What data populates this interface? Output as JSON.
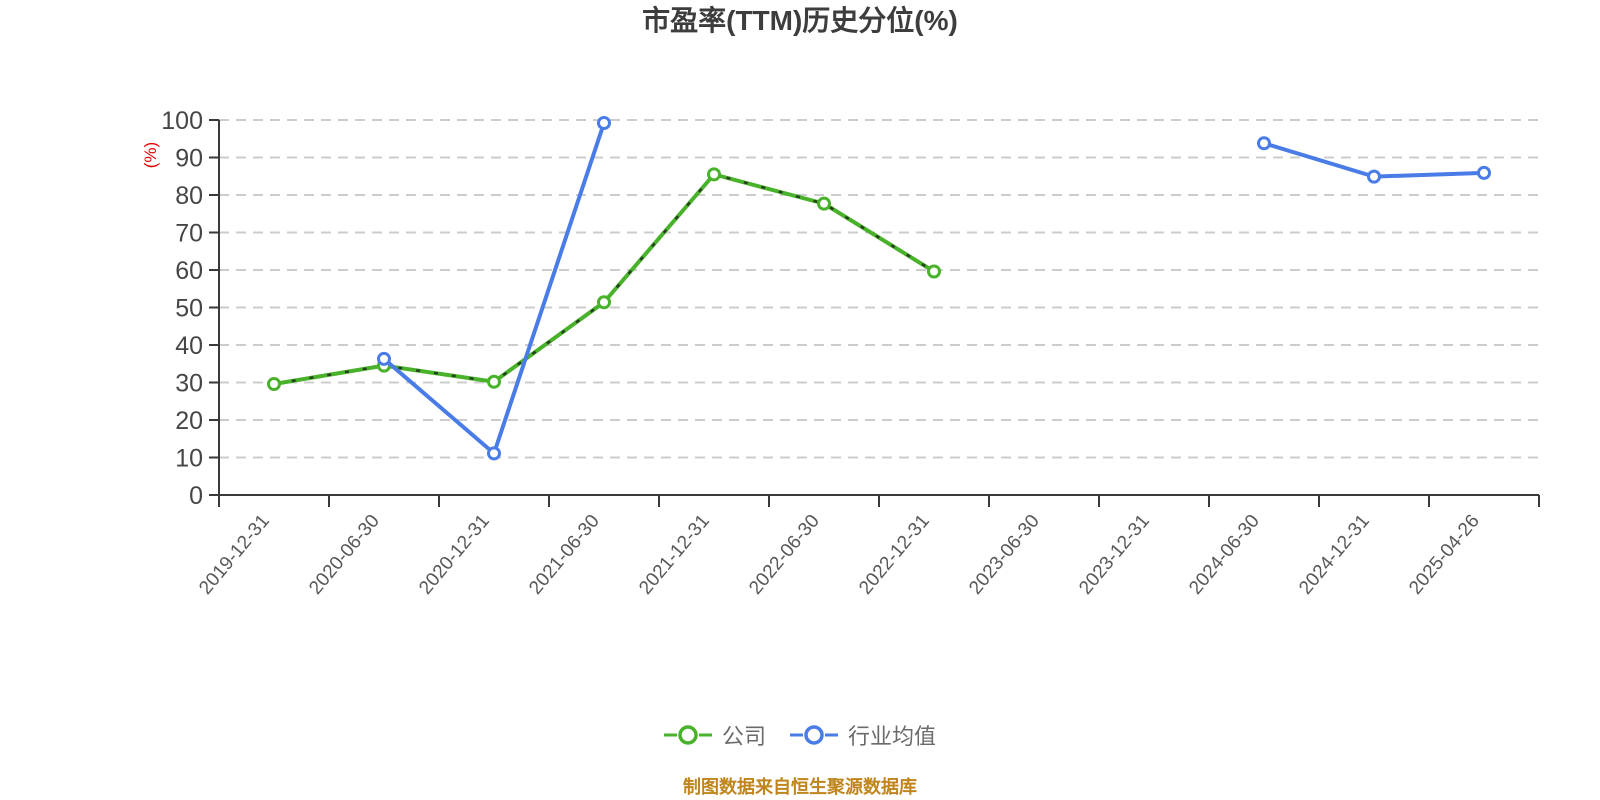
{
  "title": "市盈率(TTM)历史分位(%)",
  "footer": "制图数据来自恒生聚源数据库",
  "y_axis_unit": "(%)",
  "legend": [
    {
      "label": "公司",
      "color": "#49b22b"
    },
    {
      "label": "行业均值",
      "color": "#4a7ce8"
    }
  ],
  "colors": {
    "title": "#3d3d3d",
    "axis": "#3a3a3a",
    "tick": "#3a3a3a",
    "y_label": "#464646",
    "x_label": "#58585a",
    "gridline": "#cccccc",
    "unit_label": "#e60000",
    "legend_text": "#6b6b6b",
    "footer_text": "#c0851c",
    "company_line": "#49b22b",
    "industry_line": "#4a7ce8",
    "marker_fill": "#ffffff",
    "dash_overlay": "#1a1a1a"
  },
  "chart_data": {
    "type": "line",
    "title": "市盈率(TTM)历史分位(%)",
    "ylabel": "(%)",
    "xlabel": "",
    "ylim": [
      0,
      100
    ],
    "yticks": [
      0,
      10,
      20,
      30,
      40,
      50,
      60,
      70,
      80,
      90,
      100
    ],
    "grid": "horizontal-dashed",
    "legend_position": "bottom-center",
    "categories": [
      "2019-12-31",
      "2020-06-30",
      "2020-12-31",
      "2021-06-30",
      "2021-12-31",
      "2022-06-30",
      "2022-12-31",
      "2023-06-30",
      "2023-12-31",
      "2024-06-30",
      "2024-12-31",
      "2025-04-26"
    ],
    "series": [
      {
        "id": "company",
        "name": "公司",
        "color": "#49b22b",
        "dash_overlay": true,
        "values": [
          29.6,
          34.5,
          30.2,
          51.4,
          85.5,
          77.7,
          59.6,
          null,
          null,
          null,
          null,
          null
        ]
      },
      {
        "id": "industry-average",
        "name": "行业均值",
        "color": "#4a7ce8",
        "dash_overlay": false,
        "values": [
          null,
          36.3,
          11.1,
          99.2,
          null,
          null,
          null,
          null,
          null,
          93.8,
          84.9,
          85.9
        ]
      }
    ]
  }
}
